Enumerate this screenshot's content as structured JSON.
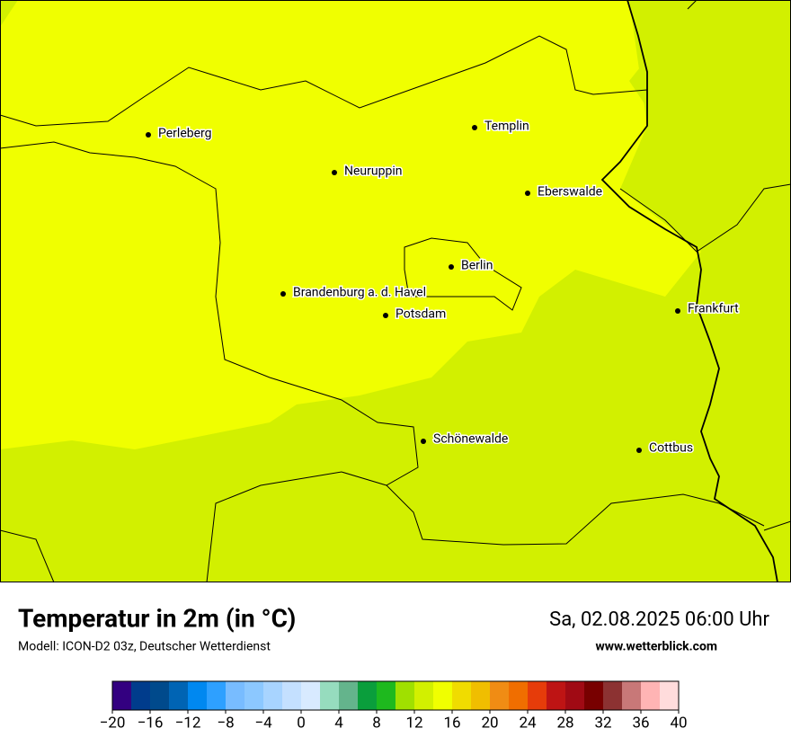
{
  "map": {
    "cities": [
      "Perleberg",
      "Templin",
      "Neuruppin",
      "Eberswalde",
      "Berlin",
      "Brandenburg a. d. Havel",
      "Potsdam",
      "Frankfurt",
      "Schönewalde",
      "Cottbus"
    ]
  },
  "footer": {
    "title": "Temperatur in 2m (in °C)",
    "subtitle": "Modell: ICON-D2 03z, Deutscher Wetterdienst",
    "datetime": "Sa, 02.08.2025 06:00 Uhr",
    "website": "www.wetterblick.com"
  },
  "colorbar": {
    "lim": [
      -20,
      40
    ],
    "colors": [
      "#330080",
      "#003c8c",
      "#004a8c",
      "#0064b4",
      "#0088f0",
      "#2ea0ff",
      "#78bcff",
      "#8cc8ff",
      "#a8d4ff",
      "#c4e0ff",
      "#d8eaff",
      "#96dcbe",
      "#64b48c",
      "#0a9e3c",
      "#1eb91e",
      "#a0e000",
      "#d2f000",
      "#f0ff00",
      "#f0dc00",
      "#f0be00",
      "#f08c14",
      "#f06e00",
      "#e63c0a",
      "#be1414",
      "#a00a14",
      "#780000",
      "#8c3232",
      "#c87878",
      "#ffb4b4",
      "#ffdcdc"
    ],
    "ticks": [
      {
        "value": -20,
        "label": "−20"
      },
      {
        "value": -16,
        "label": "−16"
      },
      {
        "value": -12,
        "label": "−12"
      },
      {
        "value": -8,
        "label": "−8"
      },
      {
        "value": -4,
        "label": "−4"
      },
      0,
      4,
      8,
      12,
      16,
      20,
      24,
      28,
      32,
      36,
      40
    ]
  }
}
